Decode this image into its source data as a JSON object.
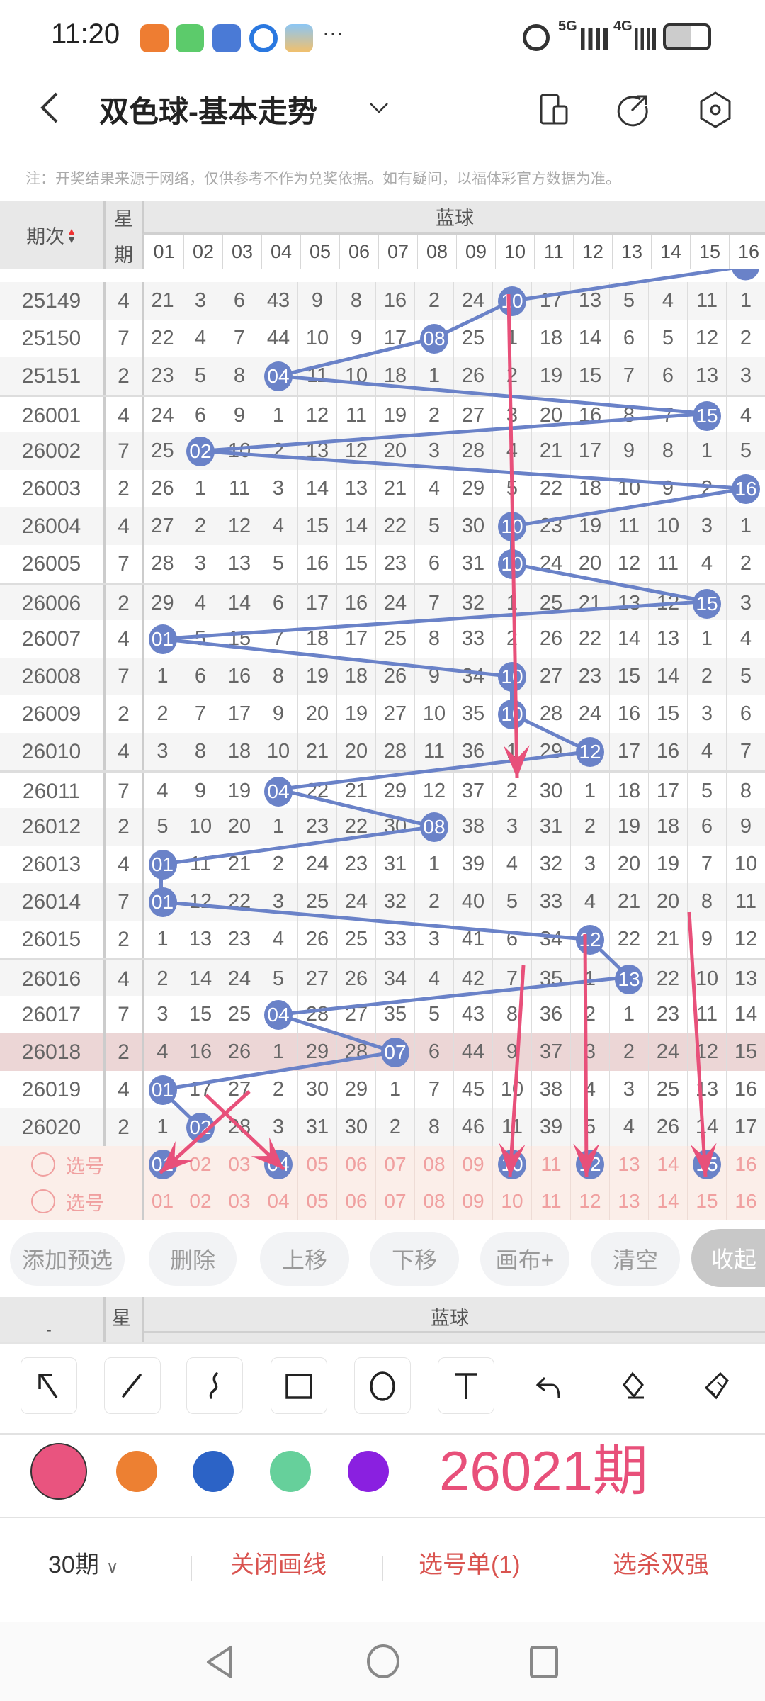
{
  "status_bar": {
    "time": "11:20",
    "more": "···",
    "network_1": "5G",
    "network_2": "4G"
  },
  "header": {
    "title": "双色球-基本走势"
  },
  "notice": "注：开奖结果来源于网络，仅供参考不作为兑奖依据。如有疑问，以福体彩官方数据为准。",
  "table": {
    "col_period": "期次",
    "col_weekday_1": "星",
    "col_weekday_2": "期",
    "group": "蓝球",
    "columns": [
      "01",
      "02",
      "03",
      "04",
      "05",
      "06",
      "07",
      "08",
      "09",
      "10",
      "11",
      "12",
      "13",
      "14",
      "15",
      "16"
    ],
    "highlight_period": "26018",
    "rows": [
      {
        "period": "25149",
        "weekday": "4",
        "ball": "10",
        "cells": [
          "21",
          "3",
          "6",
          "43",
          "9",
          "8",
          "16",
          "2",
          "24",
          "10",
          "17",
          "13",
          "5",
          "4",
          "11",
          "1"
        ]
      },
      {
        "period": "25150",
        "weekday": "7",
        "ball": "08",
        "cells": [
          "22",
          "4",
          "7",
          "44",
          "10",
          "9",
          "17",
          "08",
          "25",
          "1",
          "18",
          "14",
          "6",
          "5",
          "12",
          "2"
        ]
      },
      {
        "period": "25151",
        "weekday": "2",
        "ball": "04",
        "cells": [
          "23",
          "5",
          "8",
          "04",
          "11",
          "10",
          "18",
          "1",
          "26",
          "2",
          "19",
          "15",
          "7",
          "6",
          "13",
          "3"
        ]
      },
      {
        "period": "26001",
        "weekday": "4",
        "ball": "15",
        "cells": [
          "24",
          "6",
          "9",
          "1",
          "12",
          "11",
          "19",
          "2",
          "27",
          "3",
          "20",
          "16",
          "8",
          "7",
          "15",
          "4"
        ]
      },
      {
        "period": "26002",
        "weekday": "7",
        "ball": "02",
        "cells": [
          "25",
          "02",
          "10",
          "2",
          "13",
          "12",
          "20",
          "3",
          "28",
          "4",
          "21",
          "17",
          "9",
          "8",
          "1",
          "5"
        ]
      },
      {
        "period": "26003",
        "weekday": "2",
        "ball": "16",
        "cells": [
          "26",
          "1",
          "11",
          "3",
          "14",
          "13",
          "21",
          "4",
          "29",
          "5",
          "22",
          "18",
          "10",
          "9",
          "2",
          "16"
        ]
      },
      {
        "period": "26004",
        "weekday": "4",
        "ball": "10",
        "cells": [
          "27",
          "2",
          "12",
          "4",
          "15",
          "14",
          "22",
          "5",
          "30",
          "10",
          "23",
          "19",
          "11",
          "10",
          "3",
          "1"
        ]
      },
      {
        "period": "26005",
        "weekday": "7",
        "ball": "10",
        "cells": [
          "28",
          "3",
          "13",
          "5",
          "16",
          "15",
          "23",
          "6",
          "31",
          "10",
          "24",
          "20",
          "12",
          "11",
          "4",
          "2"
        ]
      },
      {
        "period": "26006",
        "weekday": "2",
        "ball": "15",
        "cells": [
          "29",
          "4",
          "14",
          "6",
          "17",
          "16",
          "24",
          "7",
          "32",
          "1",
          "25",
          "21",
          "13",
          "12",
          "15",
          "3"
        ]
      },
      {
        "period": "26007",
        "weekday": "4",
        "ball": "01",
        "cells": [
          "01",
          "5",
          "15",
          "7",
          "18",
          "17",
          "25",
          "8",
          "33",
          "2",
          "26",
          "22",
          "14",
          "13",
          "1",
          "4"
        ]
      },
      {
        "period": "26008",
        "weekday": "7",
        "ball": "10",
        "cells": [
          "1",
          "6",
          "16",
          "8",
          "19",
          "18",
          "26",
          "9",
          "34",
          "10",
          "27",
          "23",
          "15",
          "14",
          "2",
          "5"
        ]
      },
      {
        "period": "26009",
        "weekday": "2",
        "ball": "10",
        "cells": [
          "2",
          "7",
          "17",
          "9",
          "20",
          "19",
          "27",
          "10",
          "35",
          "10",
          "28",
          "24",
          "16",
          "15",
          "3",
          "6"
        ]
      },
      {
        "period": "26010",
        "weekday": "4",
        "ball": "12",
        "cells": [
          "3",
          "8",
          "18",
          "10",
          "21",
          "20",
          "28",
          "11",
          "36",
          "1",
          "29",
          "12",
          "17",
          "16",
          "4",
          "7"
        ]
      },
      {
        "period": "26011",
        "weekday": "7",
        "ball": "04",
        "cells": [
          "4",
          "9",
          "19",
          "04",
          "22",
          "21",
          "29",
          "12",
          "37",
          "2",
          "30",
          "1",
          "18",
          "17",
          "5",
          "8"
        ]
      },
      {
        "period": "26012",
        "weekday": "2",
        "ball": "08",
        "cells": [
          "5",
          "10",
          "20",
          "1",
          "23",
          "22",
          "30",
          "08",
          "38",
          "3",
          "31",
          "2",
          "19",
          "18",
          "6",
          "9"
        ]
      },
      {
        "period": "26013",
        "weekday": "4",
        "ball": "01",
        "cells": [
          "01",
          "11",
          "21",
          "2",
          "24",
          "23",
          "31",
          "1",
          "39",
          "4",
          "32",
          "3",
          "20",
          "19",
          "7",
          "10"
        ]
      },
      {
        "period": "26014",
        "weekday": "7",
        "ball": "01",
        "cells": [
          "01",
          "12",
          "22",
          "3",
          "25",
          "24",
          "32",
          "2",
          "40",
          "5",
          "33",
          "4",
          "21",
          "20",
          "8",
          "11"
        ]
      },
      {
        "period": "26015",
        "weekday": "2",
        "ball": "12",
        "cells": [
          "1",
          "13",
          "23",
          "4",
          "26",
          "25",
          "33",
          "3",
          "41",
          "6",
          "34",
          "12",
          "22",
          "21",
          "9",
          "12"
        ]
      },
      {
        "period": "26016",
        "weekday": "4",
        "ball": "13",
        "cells": [
          "2",
          "14",
          "24",
          "5",
          "27",
          "26",
          "34",
          "4",
          "42",
          "7",
          "35",
          "1",
          "13",
          "22",
          "10",
          "13"
        ]
      },
      {
        "period": "26017",
        "weekday": "7",
        "ball": "04",
        "cells": [
          "3",
          "15",
          "25",
          "04",
          "28",
          "27",
          "35",
          "5",
          "43",
          "8",
          "36",
          "2",
          "1",
          "23",
          "11",
          "14"
        ]
      },
      {
        "period": "26018",
        "weekday": "2",
        "ball": "07",
        "cells": [
          "4",
          "16",
          "26",
          "1",
          "29",
          "28",
          "07",
          "6",
          "44",
          "9",
          "37",
          "3",
          "2",
          "24",
          "12",
          "15"
        ]
      },
      {
        "period": "26019",
        "weekday": "4",
        "ball": "01",
        "cells": [
          "01",
          "17",
          "27",
          "2",
          "30",
          "29",
          "1",
          "7",
          "45",
          "10",
          "38",
          "4",
          "3",
          "25",
          "13",
          "16"
        ]
      },
      {
        "period": "26020",
        "weekday": "2",
        "ball": "02",
        "cells": [
          "1",
          "02",
          "28",
          "3",
          "31",
          "30",
          "2",
          "8",
          "46",
          "11",
          "39",
          "5",
          "4",
          "26",
          "14",
          "17"
        ]
      }
    ],
    "select_rows": [
      {
        "label": "选号",
        "selected": [
          "01",
          "04",
          "10",
          "12",
          "15"
        ]
      },
      {
        "label": "选号",
        "selected": []
      }
    ]
  },
  "annotation": {
    "text": "26021期"
  },
  "actions": [
    "添加预选",
    "删除",
    "上移",
    "下移",
    "画布+",
    "清空",
    "收起"
  ],
  "tools": [
    "arrow",
    "line",
    "freehand",
    "rectangle",
    "ellipse",
    "text",
    "undo",
    "eraser",
    "clear-brush"
  ],
  "palette": [
    "#e9547f",
    "#ed8032",
    "#2c63c6",
    "#66d09b",
    "#8a20e0"
  ],
  "selected_color": "#e9547f",
  "bottom_bar": {
    "period_select": "30期",
    "close_drawing": "关闭画线",
    "pick_list": "选号单(1)",
    "kill_select": "选杀双强"
  },
  "theme": {
    "ball": "#6a82c8",
    "annotation": "#e8507a",
    "select_text": "#f0a0a0",
    "highlight_row": "#ecd6d6"
  }
}
